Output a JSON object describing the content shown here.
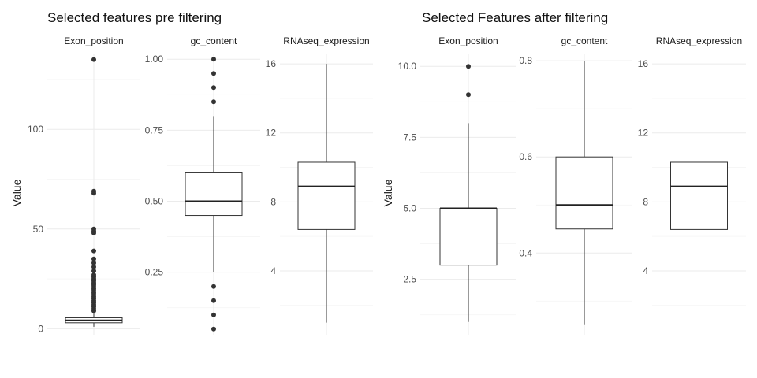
{
  "chart_data": [
    {
      "type": "boxplot",
      "title": "Selected features pre filtering",
      "ylabel": "Value",
      "panels": [
        {
          "strip": "Exon_position",
          "ylim": [
            -3,
            138
          ],
          "ticks": [
            0,
            50,
            100
          ],
          "tick_labels": [
            "0",
            "50",
            "100"
          ],
          "box": {
            "whisker_low": 1,
            "q1": 3,
            "median": 4.2,
            "q3": 5.5,
            "whisker_high": 8
          },
          "outliers": [
            135,
            69,
            68,
            50,
            49,
            48,
            39,
            35,
            33,
            31,
            29,
            27,
            26,
            25,
            24,
            23,
            22,
            21,
            20,
            19,
            18,
            17,
            16,
            15,
            14,
            13,
            12,
            11,
            10,
            9
          ]
        },
        {
          "strip": "gc_content",
          "ylim": [
            0.03,
            1.02
          ],
          "ticks": [
            0.25,
            0.5,
            0.75,
            1.0
          ],
          "tick_labels": [
            "0.25",
            "0.50",
            "0.75",
            "1.00"
          ],
          "box": {
            "whisker_low": 0.25,
            "q1": 0.45,
            "median": 0.5,
            "q3": 0.6,
            "whisker_high": 0.8
          },
          "outliers": [
            1.0,
            0.95,
            0.9,
            0.85,
            0.2,
            0.15,
            0.1,
            0.05
          ]
        },
        {
          "strip": "RNAseq_expression",
          "ylim": [
            0.3,
            16.6
          ],
          "ticks": [
            4,
            8,
            12,
            16
          ],
          "tick_labels": [
            "4",
            "8",
            "12",
            "16"
          ],
          "box": {
            "whisker_low": 1,
            "q1": 6.4,
            "median": 8.9,
            "q3": 10.3,
            "whisker_high": 16
          },
          "outliers": []
        }
      ]
    },
    {
      "type": "boxplot",
      "title": "Selected Features after filtering",
      "ylabel": "Value",
      "panels": [
        {
          "strip": "Exon_position",
          "ylim": [
            0.55,
            10.45
          ],
          "ticks": [
            2.5,
            5.0,
            7.5,
            10.0
          ],
          "tick_labels": [
            "2.5",
            "5.0",
            "7.5",
            "10.0"
          ],
          "box": {
            "whisker_low": 1,
            "q1": 3,
            "median": 5,
            "q3": 5,
            "whisker_high": 8
          },
          "outliers": [
            10,
            9
          ]
        },
        {
          "strip": "gc_content",
          "ylim": [
            0.23,
            0.815
          ],
          "ticks": [
            0.4,
            0.6,
            0.8
          ],
          "tick_labels": [
            "0.4",
            "0.6",
            "0.8"
          ],
          "box": {
            "whisker_low": 0.25,
            "q1": 0.45,
            "median": 0.5,
            "q3": 0.6,
            "whisker_high": 0.8
          },
          "outliers": []
        },
        {
          "strip": "RNAseq_expression",
          "ylim": [
            0.3,
            16.6
          ],
          "ticks": [
            4,
            8,
            12,
            16
          ],
          "tick_labels": [
            "4",
            "8",
            "12",
            "16"
          ],
          "box": {
            "whisker_low": 1,
            "q1": 6.4,
            "median": 8.9,
            "q3": 10.3,
            "whisker_high": 16
          },
          "outliers": []
        }
      ]
    }
  ]
}
